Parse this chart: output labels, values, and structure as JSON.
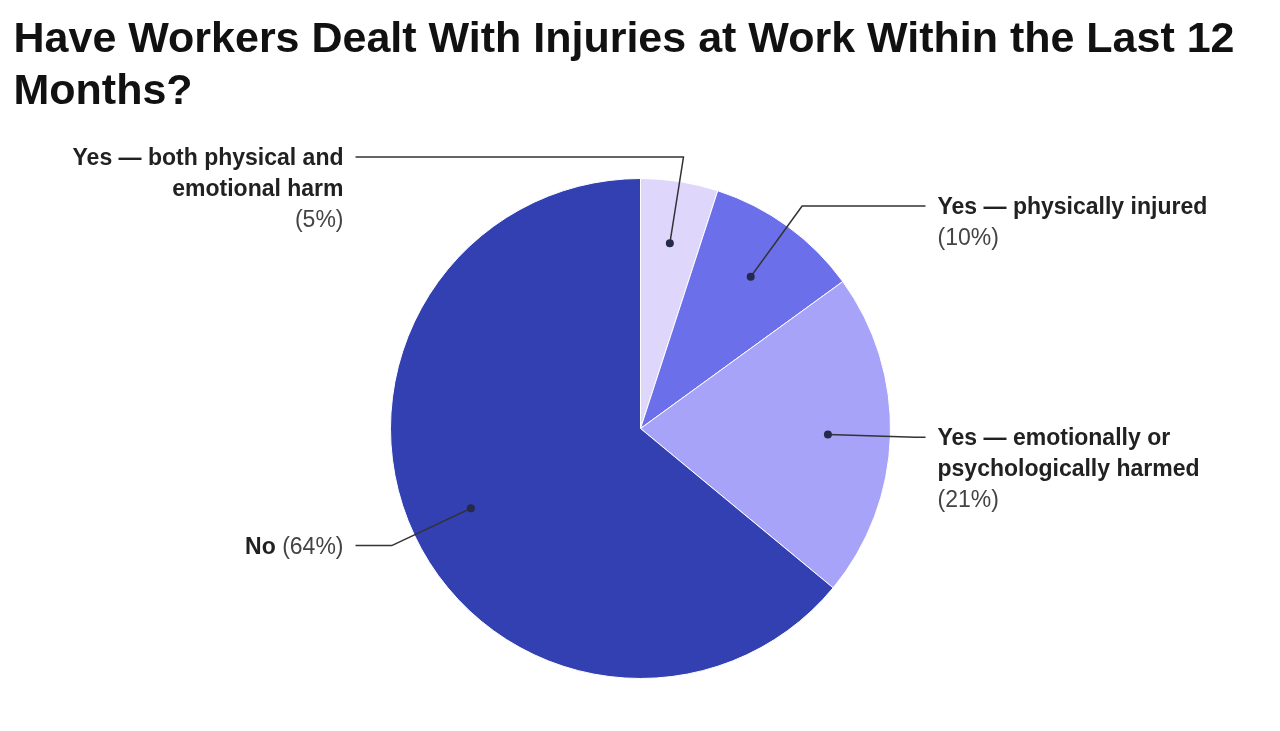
{
  "chart_data": {
    "type": "pie",
    "title": "Have Workers Dealt With Injuries at Work Within the Last 12 Months?",
    "categories": [
      "Yes — both physical and emotional harm",
      "Yes — physically injured",
      "Yes — emotionally or psychologically harmed",
      "No"
    ],
    "values": [
      5,
      10,
      21,
      64
    ],
    "colors": [
      "#ded7fb",
      "#6b6fe9",
      "#a7a3f9",
      "#3240b2"
    ],
    "value_labels": [
      "(5%)",
      "(10%)",
      "(21%)",
      "(64%)"
    ]
  }
}
